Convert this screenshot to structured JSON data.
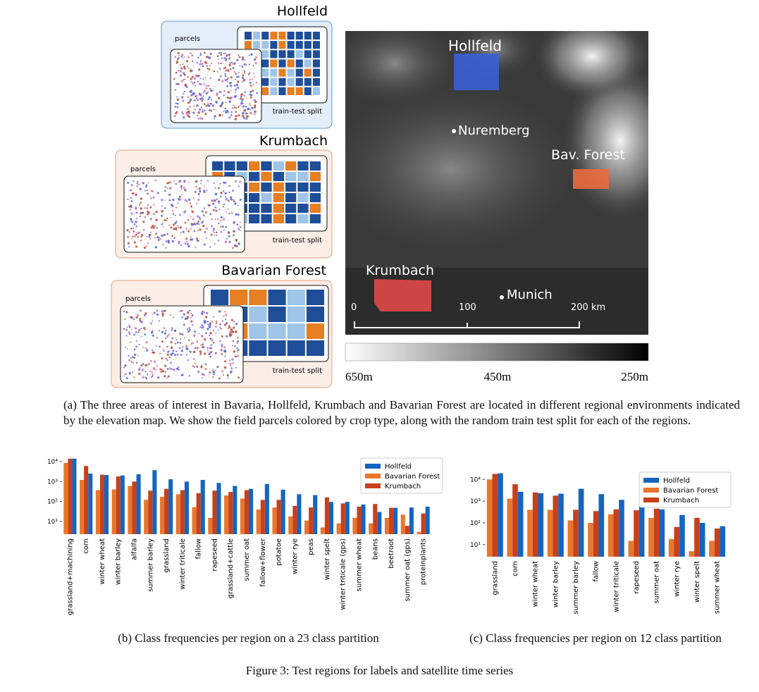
{
  "panel_a": {
    "regions": [
      {
        "title": "Hollfeld",
        "parcels_label": "parcels",
        "split_label": "train-test split"
      },
      {
        "title": "Krumbach",
        "parcels_label": "parcels",
        "split_label": "train-test split"
      },
      {
        "title": "Bavarian Forest",
        "parcels_label": "parcels",
        "split_label": "train-test split"
      }
    ],
    "map": {
      "labels": [
        "Hollfeld",
        "Nuremberg",
        "Bav. Forest",
        "Krumbach",
        "Munich"
      ],
      "scale": [
        "0",
        "100",
        "200 km"
      ],
      "colorbar": [
        "650m",
        "450m",
        "250m"
      ]
    },
    "caption": "(a) The three areas of interest in Bavaria, Hollfeld, Krumbach and Bavarian Forest are located in different regional environments indicated by the elevation map. We show the field parcels colored by crop type, along with the random train test split for each of the regions."
  },
  "chart_data": [
    {
      "type": "bar",
      "log_scale": true,
      "legend": "upper right",
      "categories": [
        "grassland+machining",
        "corn",
        "winter wheat",
        "winter barley",
        "alfalfa",
        "summer barley",
        "grassland",
        "winter triticale",
        "fallow",
        "rapeseed",
        "grassland+cattle",
        "summer oat",
        "fallow+flower",
        "potatoe",
        "winter rye",
        "peas",
        "winter spelt",
        "winter triticale (gps)",
        "summer wheat",
        "beans",
        "beetroot",
        "summer oat (gps)",
        "proteinplants"
      ],
      "series": [
        {
          "name": "Hollfeld",
          "color": "#1565c0",
          "values": [
            14000,
            2500,
            2100,
            2000,
            2300,
            3700,
            1300,
            1000,
            1200,
            850,
            600,
            430,
            750,
            390,
            230,
            210,
            95,
            95,
            70,
            30,
            48,
            50,
            55
          ]
        },
        {
          "name": "Bavarian Forest",
          "color": "#e8772e",
          "values": [
            8500,
            1200,
            370,
            400,
            600,
            120,
            170,
            230,
            52,
            15,
            200,
            140,
            40,
            50,
            18,
            11,
            5,
            8,
            15,
            8,
            15,
            22,
            3
          ]
        },
        {
          "name": "Krumbach",
          "color": "#c8401a",
          "values": [
            14000,
            6000,
            2200,
            1800,
            1000,
            350,
            430,
            370,
            260,
            350,
            300,
            370,
            120,
            120,
            60,
            50,
            160,
            80,
            55,
            75,
            48,
            6,
            25
          ]
        }
      ],
      "ylim": [
        2.3,
        15000
      ],
      "yticks": [
        {
          "value": 10,
          "label": "10¹"
        },
        {
          "value": 100,
          "label": "10²"
        },
        {
          "value": 1000,
          "label": "10³"
        },
        {
          "value": 10000,
          "label": "10⁴"
        }
      ]
    },
    {
      "type": "bar",
      "log_scale": true,
      "legend": "upper right",
      "categories": [
        "grassland",
        "corn",
        "winter wheat",
        "winter barley",
        "summer barley",
        "fallow",
        "winter triticale",
        "rapeseed",
        "summer oat",
        "winter rye",
        "winter spelt",
        "summer wheat"
      ],
      "series": [
        {
          "name": "Hollfeld",
          "color": "#1565c0",
          "values": [
            19000,
            2700,
            2300,
            2200,
            3700,
            2100,
            1150,
            900,
            420,
            230,
            100,
            70
          ]
        },
        {
          "name": "Bavarian Forest",
          "color": "#e8772e",
          "values": [
            10000,
            1300,
            400,
            400,
            130,
            100,
            250,
            15,
            170,
            18,
            5,
            15
          ]
        },
        {
          "name": "Krumbach",
          "color": "#c8401a",
          "values": [
            18000,
            6000,
            2500,
            1800,
            400,
            350,
            420,
            380,
            450,
            65,
            170,
            55
          ]
        }
      ],
      "ylim": [
        2.8,
        25000
      ],
      "yticks": [
        {
          "value": 10,
          "label": "10¹"
        },
        {
          "value": 100,
          "label": "10²"
        },
        {
          "value": 1000,
          "label": "10³"
        },
        {
          "value": 10000,
          "label": "10⁴"
        }
      ]
    }
  ],
  "captions": {
    "b": "(b) Class frequencies per region on a 23 class partition",
    "c": "(c) Class frequencies per region on 12 class partition"
  },
  "figure_caption": "Figure 3: Test regions for labels and satellite time series"
}
